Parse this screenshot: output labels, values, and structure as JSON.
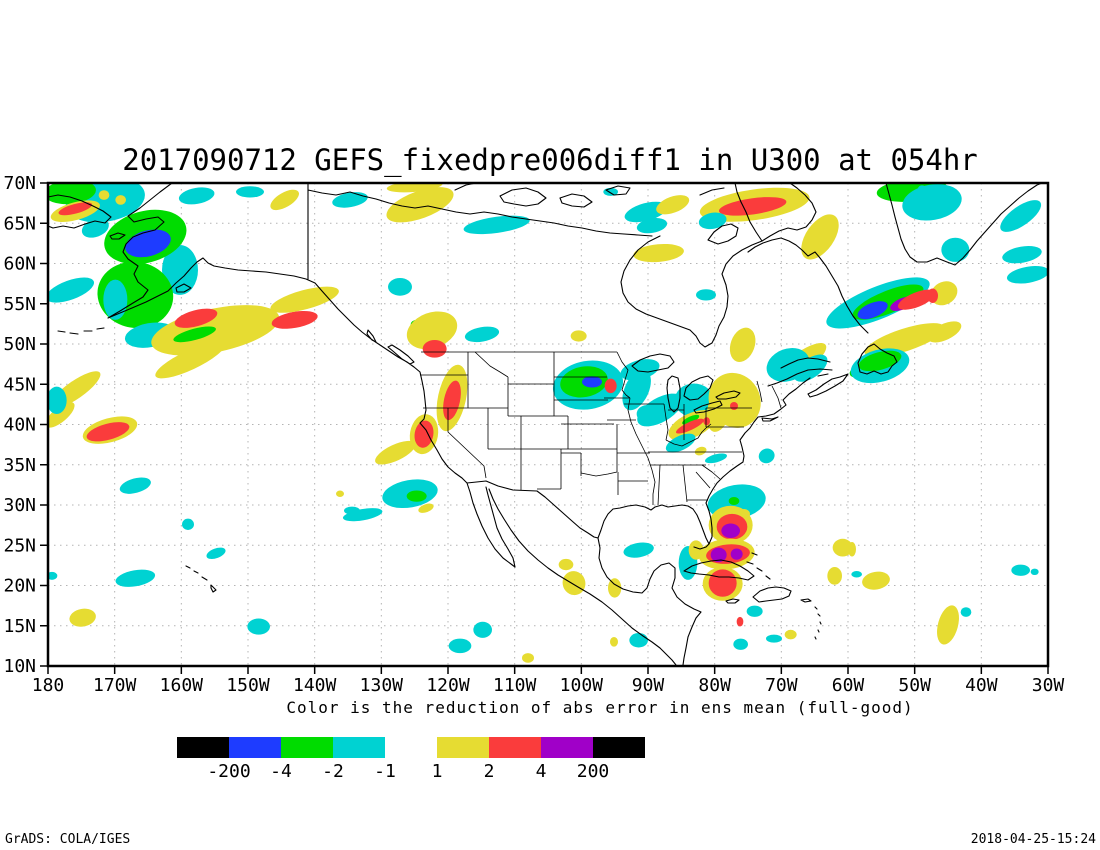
{
  "title": "2017090712 GEFS_fixedpre006diff1 in U300 at 054hr",
  "caption": "Color is the reduction of abs error in ens mean (full-good)",
  "footer": {
    "left": "GrADS: COLA/IGES",
    "right": "2018-04-25-15:24"
  },
  "chart_data": {
    "type": "heatmap",
    "subtype": "filled-contour-map",
    "title": "2017090712 GEFS_fixedpre006diff1 in U300 at 054hr",
    "init_datetime": "2017090712",
    "experiment": "GEFS_fixedpre006diff1",
    "variable": "U300",
    "forecast_hour": "054hr",
    "xlabel": "",
    "ylabel": "",
    "x_ticks": [
      "180",
      "170W",
      "160W",
      "150W",
      "140W",
      "130W",
      "120W",
      "110W",
      "100W",
      "90W",
      "80W",
      "70W",
      "60W",
      "50W",
      "40W",
      "30W"
    ],
    "y_ticks": [
      "70N",
      "65N",
      "60N",
      "55N",
      "50N",
      "45N",
      "40N",
      "35N",
      "30N",
      "25N",
      "20N",
      "15N",
      "10N"
    ],
    "lon_range_deg_west": [
      180,
      30
    ],
    "lat_range_deg_north": [
      10,
      70
    ],
    "grid": true,
    "legend_position": "bottom",
    "colorbar": {
      "left_colors": [
        "#000000",
        "#1e3cff",
        "#00dc00",
        "#00d2d2"
      ],
      "left_labels": [
        "-200",
        "-4",
        "-2",
        "-1"
      ],
      "right_colors": [
        "#e6dc32",
        "#fa3c3c",
        "#a000c8",
        "#000000"
      ],
      "right_labels": [
        "1",
        "2",
        "4",
        "200"
      ]
    },
    "level_colors": {
      "-4": "#1e3cff",
      "-2": "#00dc00",
      "-1": "#00d2d2",
      "1": "#e6dc32",
      "2": "#fa3c3c",
      "4": "#a000c8"
    },
    "regions_format": [
      "lon_deg_west",
      "lat_deg_north",
      "rx_deg",
      "ry_deg",
      "rotation_deg",
      "level"
    ],
    "regions": [
      [
        171.4,
        67.9,
        6.0,
        2.7,
        -10,
        -1
      ],
      [
        176.7,
        68.9,
        3.9,
        1.5,
        -5,
        -2
      ],
      [
        175.9,
        66.5,
        3.8,
        1.1,
        -15,
        1
      ],
      [
        175.9,
        66.8,
        2.6,
        0.6,
        -15,
        2
      ],
      [
        172.9,
        64.4,
        2.1,
        1.1,
        -20,
        -1
      ],
      [
        171.6,
        68.5,
        0.8,
        0.6,
        0,
        1
      ],
      [
        169.1,
        67.9,
        0.8,
        0.6,
        0,
        1
      ],
      [
        160.2,
        59.2,
        2.7,
        3.1,
        0,
        -1
      ],
      [
        165.4,
        63.3,
        6.3,
        3.2,
        -15,
        -2
      ],
      [
        166.9,
        56.1,
        5.7,
        4.1,
        10,
        -2
      ],
      [
        165.0,
        62.5,
        3.5,
        1.6,
        -15,
        -4
      ],
      [
        164.7,
        51.1,
        3.8,
        1.5,
        -10,
        -1
      ],
      [
        169.9,
        55.5,
        1.8,
        2.5,
        0,
        -1
      ],
      [
        157.7,
        68.4,
        2.7,
        1.0,
        -10,
        -1
      ],
      [
        149.7,
        68.9,
        2.1,
        0.7,
        0,
        -1
      ],
      [
        144.5,
        67.9,
        2.4,
        0.9,
        -30,
        1
      ],
      [
        134.7,
        67.9,
        2.7,
        0.9,
        -10,
        -1
      ],
      [
        124.2,
        67.3,
        5.3,
        1.7,
        -20,
        1
      ],
      [
        125.0,
        69.6,
        4.2,
        0.7,
        -5,
        1
      ],
      [
        112.7,
        64.8,
        5.0,
        1.0,
        -8,
        -1
      ],
      [
        95.6,
        68.9,
        1.1,
        0.5,
        0,
        -1
      ],
      [
        90.3,
        66.4,
        3.3,
        1.1,
        -15,
        -1
      ],
      [
        86.3,
        67.3,
        2.6,
        1.0,
        -20,
        1
      ],
      [
        89.4,
        64.7,
        2.3,
        0.9,
        -10,
        -1
      ],
      [
        88.4,
        61.3,
        3.8,
        1.1,
        -5,
        1
      ],
      [
        81.3,
        56.1,
        1.5,
        0.7,
        0,
        -1
      ],
      [
        74.0,
        67.3,
        8.3,
        1.9,
        -8,
        1
      ],
      [
        74.3,
        67.1,
        5.1,
        1.0,
        -8,
        2
      ],
      [
        80.3,
        65.3,
        2.1,
        1.0,
        -10,
        -1
      ],
      [
        64.2,
        63.3,
        2.1,
        3.2,
        35,
        1
      ],
      [
        50.4,
        69.1,
        5.3,
        1.4,
        -5,
        -2
      ],
      [
        47.4,
        67.6,
        4.5,
        2.2,
        -10,
        -1
      ],
      [
        48.9,
        69.3,
        0.6,
        0.4,
        0,
        -1
      ],
      [
        43.9,
        61.7,
        2.1,
        1.5,
        0,
        -1
      ],
      [
        34.1,
        65.9,
        3.6,
        1.2,
        -35,
        -1
      ],
      [
        33.9,
        61.1,
        3.0,
        1.0,
        -10,
        -1
      ],
      [
        33.0,
        58.6,
        3.2,
        1.0,
        -10,
        -1
      ],
      [
        45.6,
        56.3,
        2.1,
        1.4,
        -30,
        1
      ],
      [
        47.3,
        56.0,
        0.8,
        0.9,
        0,
        2
      ],
      [
        45.5,
        51.5,
        2.7,
        1.0,
        -25,
        1
      ],
      [
        154.9,
        51.7,
        9.8,
        2.7,
        -12,
        1
      ],
      [
        157.8,
        53.2,
        3.3,
        1.0,
        -15,
        2
      ],
      [
        143.0,
        53.0,
        3.5,
        1.0,
        -10,
        2
      ],
      [
        158.0,
        51.2,
        3.3,
        0.7,
        -15,
        -2
      ],
      [
        141.5,
        55.5,
        5.3,
        1.2,
        -15,
        1
      ],
      [
        158.7,
        48.0,
        5.7,
        1.2,
        -25,
        1
      ],
      [
        176.7,
        56.7,
        3.8,
        1.2,
        -20,
        -1
      ],
      [
        175.9,
        44.3,
        4.5,
        1.1,
        -35,
        1
      ],
      [
        178.2,
        41.2,
        2.7,
        0.9,
        -40,
        1
      ],
      [
        178.7,
        43.0,
        1.5,
        1.7,
        0,
        -1
      ],
      [
        170.7,
        39.3,
        4.2,
        1.5,
        -15,
        1
      ],
      [
        171.0,
        39.1,
        3.3,
        1.0,
        -15,
        2
      ],
      [
        127.2,
        57.1,
        1.8,
        1.1,
        0,
        -1
      ],
      [
        124.7,
        52.4,
        0.9,
        0.6,
        0,
        -2
      ],
      [
        124.5,
        51.2,
        1.5,
        0.6,
        0,
        -1
      ],
      [
        114.9,
        51.2,
        2.6,
        0.9,
        -10,
        -1
      ],
      [
        122.4,
        51.7,
        3.9,
        2.2,
        -20,
        1
      ],
      [
        122.0,
        49.4,
        1.8,
        1.1,
        0,
        2
      ],
      [
        119.4,
        43.3,
        2.1,
        4.2,
        12,
        1
      ],
      [
        119.4,
        43.0,
        1.2,
        2.5,
        12,
        2
      ],
      [
        123.6,
        38.8,
        2.1,
        2.5,
        10,
        1
      ],
      [
        123.6,
        38.8,
        1.4,
        1.7,
        10,
        2
      ],
      [
        127.9,
        36.5,
        3.3,
        1.0,
        -25,
        1
      ],
      [
        125.7,
        31.4,
        4.2,
        1.7,
        -10,
        -1
      ],
      [
        124.7,
        31.1,
        1.5,
        0.7,
        0,
        -2
      ],
      [
        123.3,
        29.6,
        1.2,
        0.5,
        -20,
        1
      ],
      [
        132.8,
        28.8,
        3.0,
        0.7,
        -10,
        -1
      ],
      [
        166.9,
        32.4,
        2.4,
        0.9,
        -15,
        -1
      ],
      [
        159.0,
        27.6,
        0.9,
        0.7,
        0,
        -1
      ],
      [
        154.8,
        24.0,
        1.5,
        0.6,
        -20,
        -1
      ],
      [
        166.9,
        20.9,
        3.0,
        1.0,
        -10,
        -1
      ],
      [
        174.8,
        16.0,
        2.0,
        1.1,
        -10,
        1
      ],
      [
        148.4,
        14.9,
        1.7,
        1.0,
        0,
        -1
      ],
      [
        179.4,
        21.2,
        0.8,
        0.5,
        0,
        -1
      ],
      [
        134.4,
        29.3,
        1.2,
        0.5,
        0,
        -1
      ],
      [
        136.2,
        31.4,
        0.6,
        0.4,
        0,
        1
      ],
      [
        100.4,
        51.0,
        1.2,
        0.7,
        0,
        1
      ],
      [
        99.0,
        44.9,
        5.3,
        3.0,
        -10,
        -1
      ],
      [
        99.6,
        45.3,
        3.6,
        1.9,
        -10,
        -2
      ],
      [
        98.4,
        45.3,
        1.5,
        0.7,
        0,
        -4
      ],
      [
        95.6,
        44.8,
        0.9,
        0.9,
        0,
        2
      ],
      [
        91.7,
        44.3,
        1.8,
        2.7,
        25,
        -1
      ],
      [
        88.2,
        41.8,
        3.8,
        1.5,
        -30,
        -1
      ],
      [
        91.2,
        46.8,
        3.0,
        1.2,
        -15,
        -1
      ],
      [
        90.2,
        41.3,
        1.5,
        1.1,
        0,
        -1
      ],
      [
        83.1,
        43.0,
        2.9,
        2.1,
        0,
        -1
      ],
      [
        77.0,
        43.0,
        3.8,
        3.5,
        -30,
        1
      ],
      [
        79.2,
        42.1,
        1.8,
        3.1,
        15,
        1
      ],
      [
        77.1,
        42.3,
        0.6,
        0.5,
        0,
        2
      ],
      [
        83.4,
        39.9,
        3.8,
        1.5,
        -25,
        1
      ],
      [
        83.6,
        40.6,
        1.4,
        0.4,
        -25,
        -2
      ],
      [
        83.7,
        39.8,
        2.3,
        0.5,
        -25,
        2
      ],
      [
        81.2,
        40.4,
        0.5,
        0.5,
        0,
        2
      ],
      [
        85.1,
        37.7,
        2.4,
        0.9,
        -25,
        -1
      ],
      [
        82.1,
        36.7,
        0.9,
        0.5,
        -20,
        1
      ],
      [
        79.8,
        35.8,
        1.7,
        0.5,
        -15,
        -1
      ],
      [
        72.2,
        36.1,
        1.2,
        0.9,
        -20,
        -1
      ],
      [
        66.8,
        47.9,
        4.2,
        1.2,
        -35,
        1
      ],
      [
        65.6,
        47.0,
        2.9,
        1.2,
        -35,
        -1
      ],
      [
        58.4,
        46.6,
        1.4,
        0.7,
        -20,
        -2
      ],
      [
        75.8,
        49.9,
        1.8,
        2.2,
        20,
        1
      ],
      [
        55.5,
        55.1,
        8.3,
        2.0,
        -22,
        -1
      ],
      [
        54.0,
        55.2,
        5.7,
        1.4,
        -22,
        -2
      ],
      [
        56.3,
        54.2,
        2.4,
        0.9,
        -22,
        -4
      ],
      [
        51.8,
        55.0,
        2.0,
        0.7,
        -22,
        4
      ],
      [
        49.7,
        55.5,
        3.0,
        0.9,
        -22,
        2
      ],
      [
        51.5,
        50.5,
        6.3,
        1.4,
        -18,
        1
      ],
      [
        69.0,
        47.4,
        3.3,
        2.0,
        -20,
        -1
      ],
      [
        55.2,
        47.3,
        4.5,
        2.0,
        -15,
        -1
      ],
      [
        55.2,
        47.9,
        3.3,
        1.1,
        -15,
        -2
      ],
      [
        76.7,
        30.4,
        4.4,
        2.1,
        -10,
        -1
      ],
      [
        77.1,
        30.5,
        0.8,
        0.5,
        0,
        -2
      ],
      [
        75.6,
        28.9,
        0.9,
        0.6,
        0,
        1
      ],
      [
        77.6,
        27.5,
        3.3,
        2.4,
        0,
        1
      ],
      [
        77.4,
        27.3,
        2.3,
        1.6,
        0,
        2
      ],
      [
        77.6,
        26.8,
        1.4,
        0.9,
        0,
        4
      ],
      [
        78.2,
        23.9,
        4.2,
        1.9,
        -5,
        1
      ],
      [
        78.0,
        23.9,
        3.3,
        1.2,
        -5,
        2
      ],
      [
        79.4,
        23.8,
        1.2,
        0.9,
        0,
        4
      ],
      [
        76.7,
        23.9,
        0.9,
        0.7,
        0,
        4
      ],
      [
        78.8,
        20.2,
        3.0,
        2.1,
        0,
        1
      ],
      [
        78.8,
        20.3,
        2.1,
        1.7,
        0,
        2
      ],
      [
        84.0,
        22.8,
        1.4,
        2.1,
        0,
        -1
      ],
      [
        82.8,
        24.4,
        1.1,
        1.2,
        0,
        1
      ],
      [
        60.8,
        24.7,
        1.5,
        1.1,
        0,
        1
      ],
      [
        62.0,
        21.2,
        1.1,
        1.1,
        0,
        1
      ],
      [
        55.8,
        20.6,
        2.1,
        1.1,
        -10,
        1
      ],
      [
        58.7,
        21.4,
        0.8,
        0.4,
        0,
        -1
      ],
      [
        74.0,
        16.8,
        1.2,
        0.7,
        0,
        -1
      ],
      [
        91.4,
        24.4,
        2.3,
        0.9,
        -10,
        -1
      ],
      [
        95.0,
        19.7,
        1.0,
        1.2,
        0,
        1
      ],
      [
        91.4,
        13.2,
        1.4,
        0.9,
        0,
        -1
      ],
      [
        95.1,
        13.0,
        0.6,
        0.6,
        0,
        1
      ],
      [
        76.1,
        12.7,
        1.1,
        0.7,
        0,
        -1
      ],
      [
        71.1,
        13.4,
        1.2,
        0.5,
        0,
        -1
      ],
      [
        68.6,
        13.9,
        0.9,
        0.6,
        0,
        1
      ],
      [
        76.2,
        15.5,
        0.5,
        0.6,
        0,
        2
      ],
      [
        45.0,
        15.1,
        1.5,
        2.5,
        15,
        1
      ],
      [
        42.3,
        16.7,
        0.8,
        0.6,
        0,
        -1
      ],
      [
        34.1,
        21.9,
        1.4,
        0.7,
        0,
        -1
      ],
      [
        32.0,
        21.7,
        0.6,
        0.4,
        0,
        -1
      ],
      [
        59.4,
        24.5,
        0.6,
        0.9,
        0,
        1
      ],
      [
        102.3,
        22.6,
        1.1,
        0.7,
        0,
        1
      ],
      [
        101.1,
        20.3,
        1.7,
        1.5,
        -20,
        1
      ],
      [
        114.8,
        14.5,
        1.4,
        1.0,
        0,
        -1
      ],
      [
        118.2,
        12.5,
        1.7,
        0.9,
        0,
        -1
      ],
      [
        108.0,
        11.0,
        0.9,
        0.6,
        0,
        1
      ]
    ]
  }
}
